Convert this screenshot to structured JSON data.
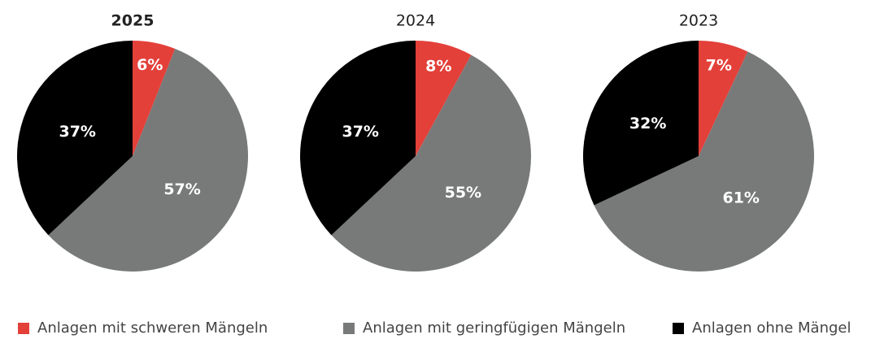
{
  "chart_data": [
    {
      "type": "pie",
      "title": "2025",
      "categories": [
        "Anlagen mit schweren Mängeln",
        "Anlagen mit geringfügigen Mängeln",
        "Anlagen ohne Mängel"
      ],
      "values": [
        6,
        57,
        37
      ],
      "value_labels": [
        "6%",
        "57%",
        "37%"
      ],
      "colors": [
        "#e3403a",
        "#787a7a",
        "#000000"
      ]
    },
    {
      "type": "pie",
      "title": "2024",
      "categories": [
        "Anlagen mit schweren Mängeln",
        "Anlagen mit geringfügigen Mängeln",
        "Anlagen ohne Mängel"
      ],
      "values": [
        8,
        55,
        37
      ],
      "value_labels": [
        "8%",
        "55%",
        "37%"
      ],
      "colors": [
        "#e3403a",
        "#787a7a",
        "#000000"
      ]
    },
    {
      "type": "pie",
      "title": "2023",
      "categories": [
        "Anlagen mit schweren Mängeln",
        "Anlagen mit geringfügigen Mängeln",
        "Anlagen ohne Mängel"
      ],
      "values": [
        7,
        61,
        32
      ],
      "value_labels": [
        "7%",
        "61%",
        "32%"
      ],
      "colors": [
        "#e3403a",
        "#787a7a",
        "#000000"
      ]
    }
  ]
}
